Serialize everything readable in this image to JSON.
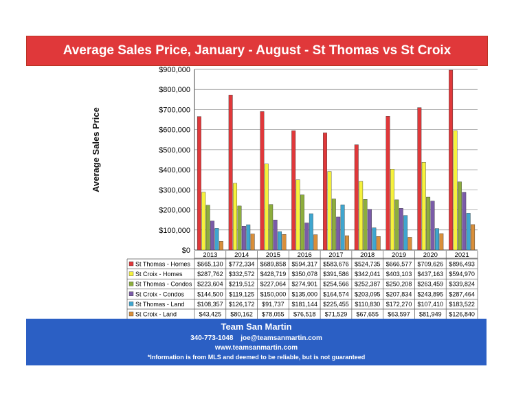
{
  "chart_data": {
    "type": "bar",
    "title": "Average Sales Price,  January - August - St Thomas vs St Croix",
    "ylabel": "Average Sales Price",
    "xlabel": "",
    "ylim": [
      0,
      900000
    ],
    "yticks": [
      "$0",
      "$100,000",
      "$200,000",
      "$300,000",
      "$400,000",
      "$500,000",
      "$600,000",
      "$700,000",
      "$800,000",
      "$900,000"
    ],
    "grid": true,
    "categories": [
      "2013",
      "2014",
      "2015",
      "2016",
      "2017",
      "2018",
      "2019",
      "2020",
      "2021"
    ],
    "series": [
      {
        "name": "St Thomas - Homes",
        "color": "#e0383a",
        "values": [
          665130,
          772334,
          689858,
          594317,
          583676,
          524735,
          666577,
          709626,
          896493
        ],
        "labels": [
          "$665,130",
          "$772,334",
          "$689,858",
          "$594,317",
          "$583,676",
          "$524,735",
          "$666,577",
          "$709,626",
          "$896,493"
        ]
      },
      {
        "name": "St Croix - Homes",
        "color": "#f6f23c",
        "values": [
          287762,
          332572,
          428719,
          350078,
          391586,
          342041,
          403103,
          437163,
          594970
        ],
        "labels": [
          "$287,762",
          "$332,572",
          "$428,719",
          "$350,078",
          "$391,586",
          "$342,041",
          "$403,103",
          "$437,163",
          "$594,970"
        ]
      },
      {
        "name": "St Thomas - Condos",
        "color": "#8dae3c",
        "values": [
          223604,
          219512,
          227064,
          274901,
          254566,
          252387,
          250208,
          263459,
          339824
        ],
        "labels": [
          "$223,604",
          "$219,512",
          "$227,064",
          "$274,901",
          "$254,566",
          "$252,387",
          "$250,208",
          "$263,459",
          "$339,824"
        ]
      },
      {
        "name": "St Croix - Condos",
        "color": "#7a5ba8",
        "values": [
          144500,
          119125,
          150000,
          135000,
          164574,
          203095,
          207834,
          243895,
          287464
        ],
        "labels": [
          "$144,500",
          "$119,125",
          "$150,000",
          "$135,000",
          "$164,574",
          "$203,095",
          "$207,834",
          "$243,895",
          "$287,464"
        ]
      },
      {
        "name": "St Thomas - Land",
        "color": "#3fa6cf",
        "values": [
          108357,
          126172,
          91737,
          181144,
          225455,
          110830,
          172270,
          107410,
          183522
        ],
        "labels": [
          "$108,357",
          "$126,172",
          "$91,737",
          "$181,144",
          "$225,455",
          "$110,830",
          "$172,270",
          "$107,410",
          "$183,522"
        ]
      },
      {
        "name": "St Croix - Land",
        "color": "#d98f3a",
        "values": [
          43425,
          80162,
          78055,
          76518,
          71529,
          67655,
          63597,
          81949,
          126840
        ],
        "labels": [
          "$43,425",
          "$80,162",
          "$78,055",
          "$76,518",
          "$71,529",
          "$67,655",
          "$63,597",
          "$81,949",
          "$126,840"
        ]
      }
    ]
  },
  "footer": {
    "name": "Team San Martin",
    "phone": "340-773-1048",
    "email": "joe@teamsanmartin.com",
    "website": "www.teamsanmartin.com",
    "note": "*Information is from MLS and deemed to be reliable, but is not guaranteed"
  }
}
